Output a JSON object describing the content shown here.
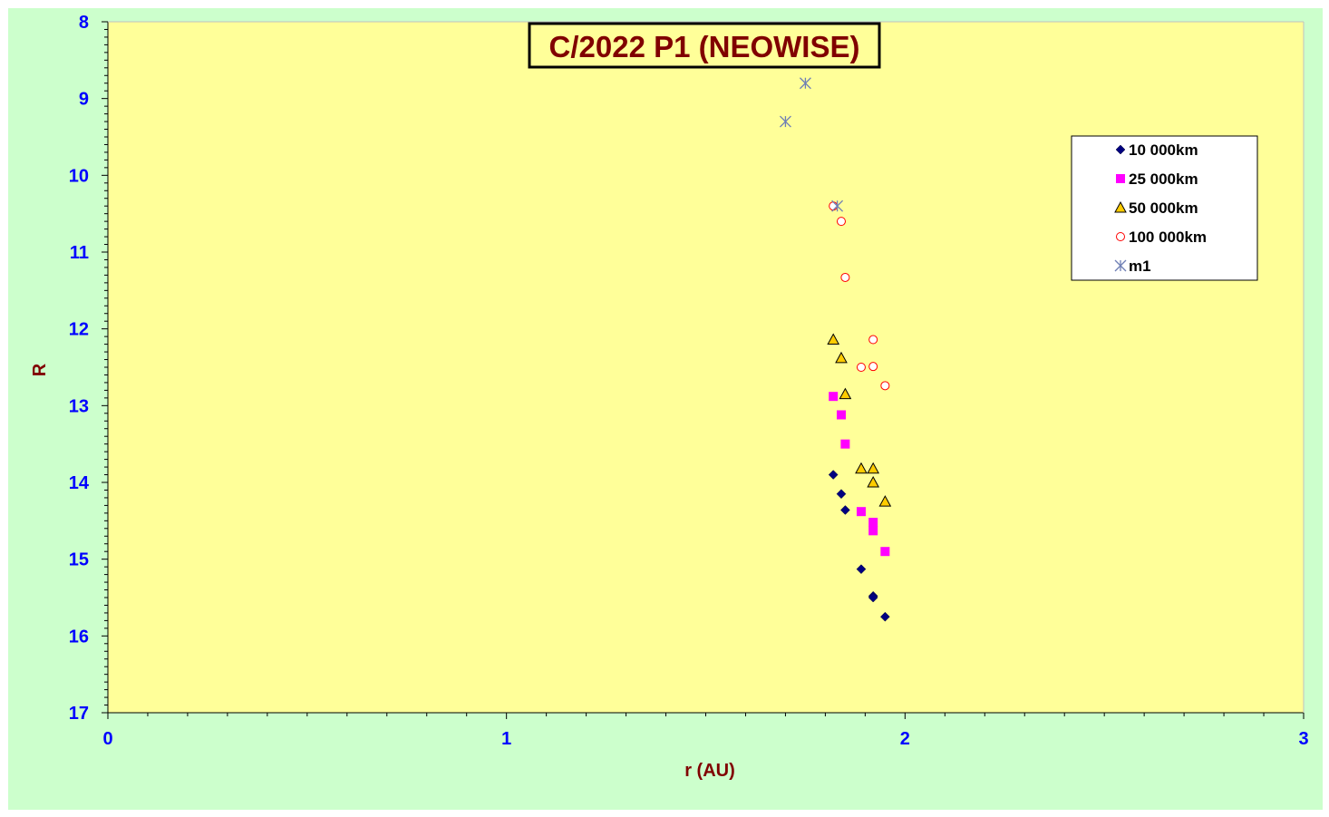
{
  "chart_data": {
    "type": "scatter",
    "title": "C/2022 P1 (NEOWISE)",
    "xlabel": "r (AU)",
    "ylabel": "R",
    "xlim": [
      0,
      3
    ],
    "ylim": [
      8,
      17
    ],
    "y_inverted": true,
    "x_ticks": [
      0,
      1,
      2,
      3
    ],
    "y_ticks": [
      8,
      9,
      10,
      11,
      12,
      13,
      14,
      15,
      16,
      17
    ],
    "grid": false,
    "legend_position": "top-right",
    "colors": {
      "chart_background": "#ccffcc",
      "plot_background": "#ffff99",
      "tick_labels": "#0000ff",
      "axis_titles": "#800000"
    },
    "series": [
      {
        "name": "10 000km",
        "marker": "diamond",
        "color": "#000080",
        "points": [
          [
            1.82,
            13.9
          ],
          [
            1.84,
            14.15
          ],
          [
            1.85,
            14.36
          ],
          [
            1.89,
            15.13
          ],
          [
            1.92,
            15.48
          ],
          [
            1.92,
            15.5
          ],
          [
            1.95,
            15.75
          ]
        ]
      },
      {
        "name": "25 000km",
        "marker": "square",
        "color": "#ff00ff",
        "points": [
          [
            1.82,
            12.88
          ],
          [
            1.84,
            13.12
          ],
          [
            1.85,
            13.5
          ],
          [
            1.89,
            14.38
          ],
          [
            1.92,
            14.52
          ],
          [
            1.92,
            14.63
          ],
          [
            1.95,
            14.9
          ]
        ]
      },
      {
        "name": "50 000km",
        "marker": "triangle",
        "color": "#ffcc00",
        "points": [
          [
            1.82,
            12.14
          ],
          [
            1.84,
            12.38
          ],
          [
            1.85,
            12.85
          ],
          [
            1.89,
            13.82
          ],
          [
            1.92,
            13.82
          ],
          [
            1.92,
            14.0
          ],
          [
            1.95,
            14.25
          ]
        ]
      },
      {
        "name": "100 000km",
        "marker": "circle",
        "color": "#ff0000",
        "points": [
          [
            1.82,
            10.4
          ],
          [
            1.84,
            10.6
          ],
          [
            1.85,
            11.33
          ],
          [
            1.89,
            12.5
          ],
          [
            1.92,
            12.14
          ],
          [
            1.92,
            12.49
          ],
          [
            1.95,
            12.74
          ]
        ]
      },
      {
        "name": "m1",
        "marker": "asterisk",
        "color": "#6f7fb5",
        "points": [
          [
            1.75,
            8.8
          ],
          [
            1.7,
            9.3
          ],
          [
            1.83,
            10.4
          ]
        ]
      }
    ]
  }
}
